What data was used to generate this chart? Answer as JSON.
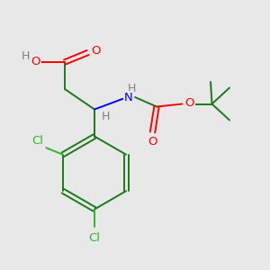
{
  "bg_color": "#e8e8e8",
  "atom_colors": {
    "C": "#1a7a1a",
    "O": "#ff0000",
    "N": "#0000ff",
    "Cl": "#2db52d",
    "H": "#808080"
  },
  "figsize": [
    3.0,
    3.0
  ],
  "dpi": 100,
  "lw": 1.4,
  "fs": 9.5
}
